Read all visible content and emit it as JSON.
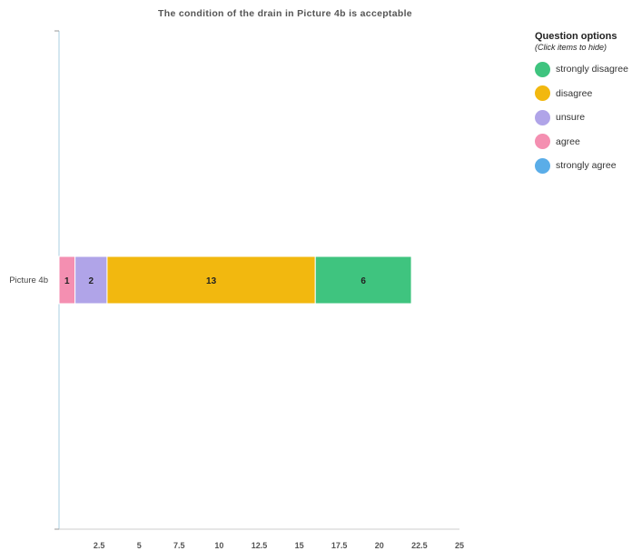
{
  "chart_data": {
    "type": "bar",
    "orientation": "horizontal",
    "stacked": true,
    "title": "The condition of the drain in Picture 4b is acceptable",
    "categories": [
      "Picture 4b"
    ],
    "series": [
      {
        "name": "agree",
        "values": [
          1
        ],
        "color": "#f48fb1"
      },
      {
        "name": "unsure",
        "values": [
          2
        ],
        "color": "#b0a4e8"
      },
      {
        "name": "disagree",
        "values": [
          13
        ],
        "color": "#f2b80f"
      },
      {
        "name": "strongly disagree",
        "values": [
          6
        ],
        "color": "#3fc47f"
      },
      {
        "name": "strongly agree",
        "values": [
          0
        ],
        "color": "#5aade8"
      }
    ],
    "xlim": [
      0,
      25
    ],
    "x_ticks": [
      "2.5",
      "5",
      "7.5",
      "10",
      "12.5",
      "15",
      "17.5",
      "20",
      "22.5",
      "25"
    ],
    "x_tick_values": [
      2.5,
      5,
      7.5,
      10,
      12.5,
      15,
      17.5,
      20,
      22.5,
      25
    ],
    "grid": false,
    "legend_placement": "right"
  },
  "legend": {
    "title": "Question options",
    "subtitle": "(Click items to hide)",
    "items": [
      {
        "label": "strongly disagree",
        "color": "#3fc47f"
      },
      {
        "label": "disagree",
        "color": "#f2b80f"
      },
      {
        "label": "unsure",
        "color": "#b0a4e8"
      },
      {
        "label": "agree",
        "color": "#f48fb1"
      },
      {
        "label": "strongly agree",
        "color": "#5aade8"
      }
    ]
  }
}
